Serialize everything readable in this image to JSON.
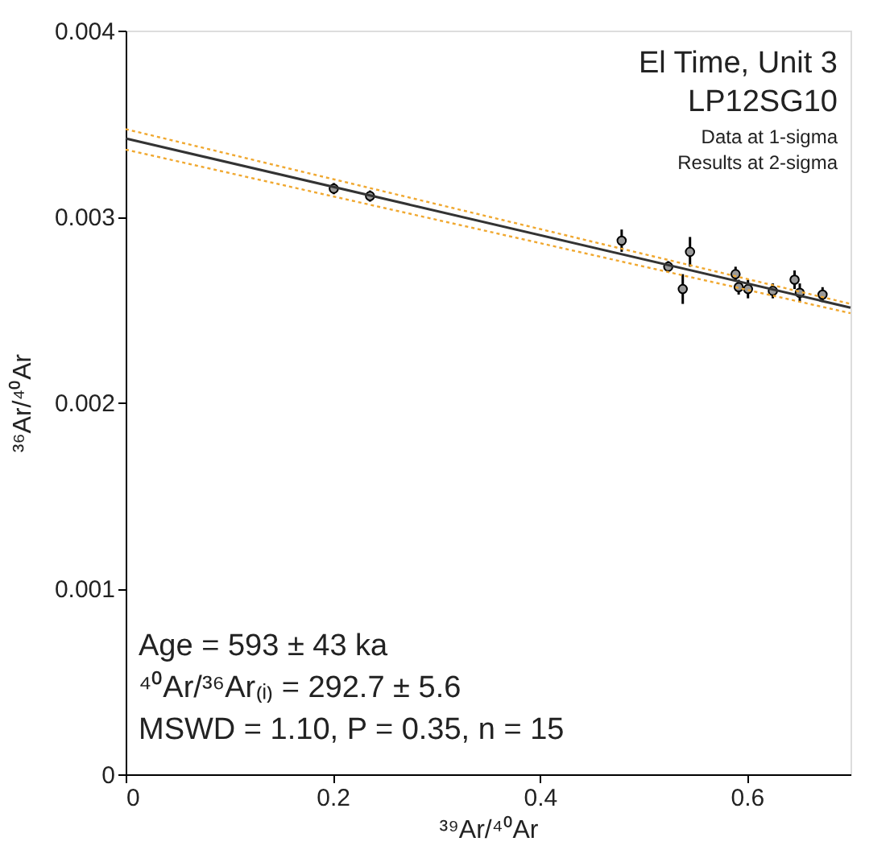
{
  "chart_data": {
    "type": "scatter",
    "xlabel": "³⁹Ar/⁴⁰Ar",
    "ylabel": "³⁶Ar/⁴⁰Ar",
    "xlim": [
      0,
      0.7
    ],
    "ylim": [
      0,
      0.004
    ],
    "xticks": [
      0,
      0.2,
      0.4,
      0.6
    ],
    "yticks": [
      0,
      0.001,
      0.002,
      0.003,
      0.004
    ],
    "grid": false,
    "marker": "circle",
    "series": [
      {
        "color": "#999999",
        "x": [
          0.201,
          0.236,
          0.479,
          0.524,
          0.545,
          0.538,
          0.589,
          0.592,
          0.601,
          0.625,
          0.646,
          0.651,
          0.673
        ],
        "values": [
          0.00315,
          0.00311,
          0.00287,
          0.00273,
          0.00281,
          0.00261,
          0.00269,
          0.00262,
          0.00261,
          0.0026,
          0.00266,
          0.00259,
          0.00258
        ],
        "errors": [
          3e-05,
          3e-05,
          6e-05,
          3e-05,
          8e-05,
          8e-05,
          4e-05,
          4e-05,
          5e-05,
          4e-05,
          5e-05,
          5e-05,
          4e-05
        ]
      },
      {
        "type": "line",
        "color": "#333333",
        "marker": "none",
        "line_style": "solid",
        "x": [
          0,
          0.7
        ],
        "values": [
          0.00342,
          0.00251
        ]
      },
      {
        "type": "line",
        "color": "#f0a830",
        "marker": "none",
        "line_style": "dotted",
        "x": [
          0,
          0.7
        ],
        "values": [
          0.00347,
          0.00253
        ]
      },
      {
        "type": "line",
        "color": "#f0a830",
        "marker": "none",
        "line_style": "dotted",
        "x": [
          0,
          0.7
        ],
        "values": [
          0.00336,
          0.00248
        ]
      }
    ],
    "annotations": [
      "El Time, Unit 3",
      "LP12SG10",
      "Data at 1-sigma",
      "Results at 2-sigma",
      "Age = 593 ± 43 ka",
      "⁴⁰Ar/³⁶Ar₍ᵢ₎ = 292.7 ± 5.6",
      "MSWD = 1.10, P = 0.35, n = 15"
    ]
  }
}
